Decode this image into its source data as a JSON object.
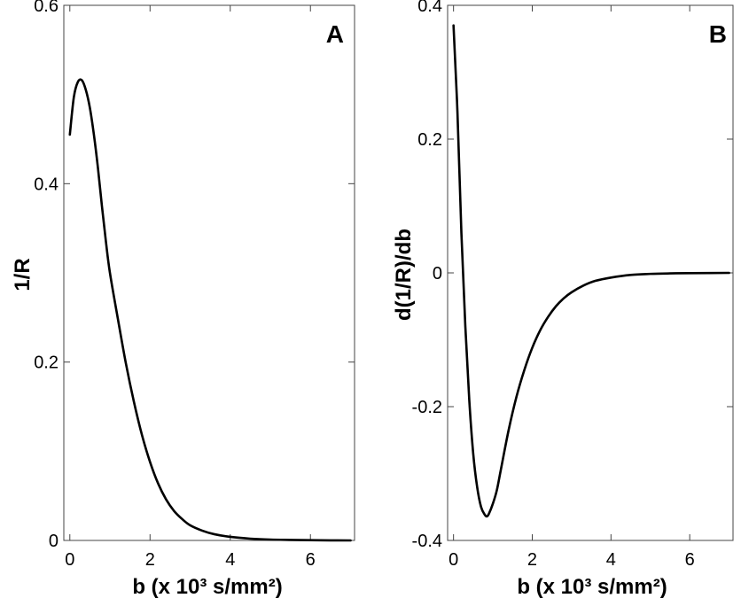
{
  "chart_data": [
    {
      "type": "line",
      "panel_label": "A",
      "xlabel": "b  (x 10³ s/mm²)",
      "ylabel": "1/R",
      "xlim": [
        -0.15,
        7.1
      ],
      "ylim": [
        0,
        0.6
      ],
      "xticks": [
        0,
        2,
        4,
        6
      ],
      "xtick_labels": [
        "0",
        "2",
        "4",
        "6"
      ],
      "yticks": [
        0,
        0.2,
        0.4,
        0.6
      ],
      "ytick_labels": [
        "0",
        "0.2",
        "0.4",
        "0.6"
      ],
      "series": [
        {
          "name": "1/R",
          "x": [
            0,
            0.1,
            0.2,
            0.3,
            0.4,
            0.5,
            0.6,
            0.7,
            0.8,
            0.9,
            1.0,
            1.2,
            1.4,
            1.6,
            1.8,
            2.0,
            2.2,
            2.4,
            2.6,
            2.8,
            3.0,
            3.3,
            3.6,
            4.0,
            4.5,
            5.0,
            5.5,
            6.0,
            6.5,
            7.0
          ],
          "y": [
            0.455,
            0.497,
            0.514,
            0.516,
            0.505,
            0.485,
            0.455,
            0.418,
            0.375,
            0.335,
            0.3,
            0.248,
            0.198,
            0.155,
            0.118,
            0.088,
            0.064,
            0.046,
            0.033,
            0.024,
            0.017,
            0.011,
            0.007,
            0.004,
            0.002,
            0.001,
            0.0006,
            0.0003,
            0.0001,
            0.0
          ]
        }
      ]
    },
    {
      "type": "line",
      "panel_label": "B",
      "xlabel": "b  (x 10³ s/mm²)",
      "ylabel": "d(1/R)/db",
      "xlim": [
        -0.15,
        7.1
      ],
      "ylim": [
        -0.4,
        0.4
      ],
      "xticks": [
        0,
        2,
        4,
        6
      ],
      "xtick_labels": [
        "0",
        "2",
        "4",
        "6"
      ],
      "yticks": [
        -0.4,
        -0.2,
        0,
        0.2,
        0.4
      ],
      "ytick_labels": [
        "-0.4",
        "-0.2",
        "0",
        "0.2",
        "0.4"
      ],
      "series": [
        {
          "name": "d(1/R)/db",
          "x": [
            0,
            0.1,
            0.2,
            0.3,
            0.4,
            0.5,
            0.6,
            0.7,
            0.8,
            0.85,
            0.9,
            1.0,
            1.1,
            1.2,
            1.4,
            1.6,
            1.8,
            2.0,
            2.2,
            2.4,
            2.6,
            2.8,
            3.0,
            3.3,
            3.6,
            4.0,
            4.5,
            5.0,
            5.5,
            6.0,
            7.0
          ],
          "y": [
            0.37,
            0.24,
            0.06,
            -0.08,
            -0.19,
            -0.27,
            -0.32,
            -0.35,
            -0.362,
            -0.364,
            -0.36,
            -0.345,
            -0.325,
            -0.295,
            -0.235,
            -0.185,
            -0.145,
            -0.112,
            -0.086,
            -0.066,
            -0.05,
            -0.038,
            -0.029,
            -0.019,
            -0.012,
            -0.007,
            -0.003,
            -0.0015,
            -0.0008,
            -0.0004,
            0.0
          ]
        }
      ]
    }
  ]
}
